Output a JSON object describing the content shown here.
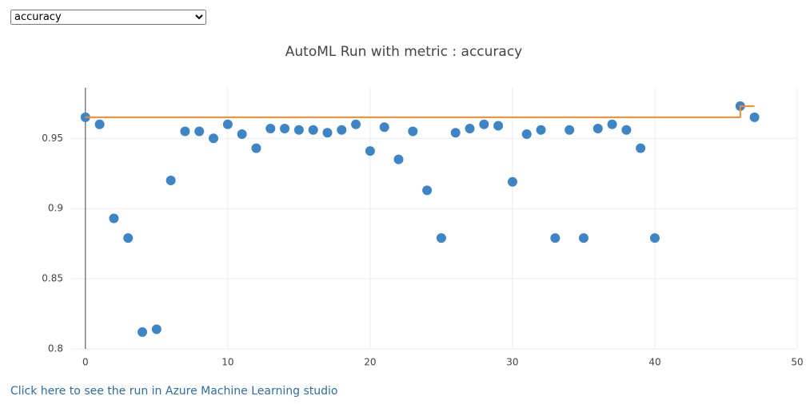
{
  "dropdown": {
    "selected": "accuracy"
  },
  "chart_data": {
    "type": "scatter",
    "title": "AutoML Run with metric : accuracy",
    "series": [
      {
        "color": "#3d85c6",
        "mode": "markers",
        "x": [
          0,
          1,
          2,
          3,
          4,
          5,
          6,
          7,
          8,
          9,
          10,
          11,
          12,
          13,
          14,
          15,
          16,
          17,
          18,
          19,
          20,
          21,
          22,
          23,
          24,
          25,
          26,
          27,
          28,
          29,
          30,
          31,
          32,
          33,
          34,
          35,
          36,
          37,
          38,
          39,
          40,
          46,
          47
        ],
        "values": [
          0.965,
          0.96,
          0.893,
          0.879,
          0.812,
          0.814,
          0.92,
          0.955,
          0.955,
          0.95,
          0.96,
          0.953,
          0.943,
          0.957,
          0.957,
          0.956,
          0.956,
          0.954,
          0.956,
          0.96,
          0.941,
          0.958,
          0.935,
          0.955,
          0.913,
          0.879,
          0.954,
          0.957,
          0.96,
          0.959,
          0.919,
          0.953,
          0.956,
          0.879,
          0.956,
          0.879,
          0.957,
          0.96,
          0.956,
          0.943,
          0.879,
          0.973,
          0.965
        ]
      },
      {
        "color": "#f28a2e",
        "mode": "step",
        "x": [
          0,
          46,
          47
        ],
        "values": [
          0.965,
          0.973,
          0.973
        ]
      }
    ],
    "xlim": [
      -1,
      50
    ],
    "ylim": [
      0.8,
      0.986
    ],
    "xticks": [
      0,
      10,
      20,
      30,
      40,
      50
    ],
    "yticks": [
      0.8,
      0.85,
      0.9,
      0.95
    ],
    "grid": true,
    "zeroline": true
  },
  "link": "Click here to see the run in Azure Machine Learning studio"
}
